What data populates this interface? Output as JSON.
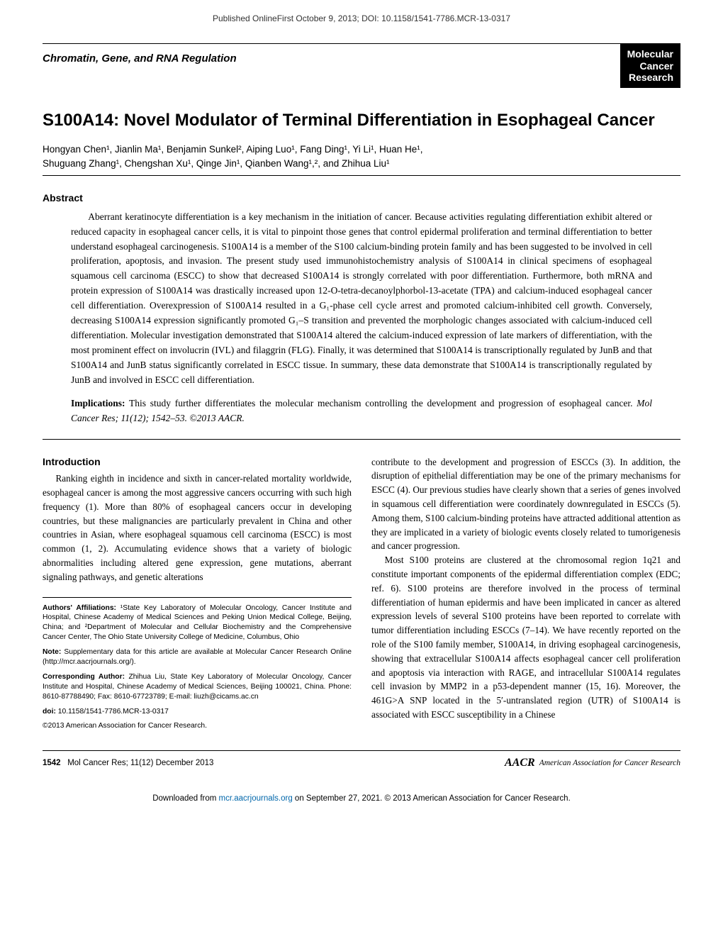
{
  "top_header": "Published OnlineFirst October 9, 2013; DOI: 10.1158/1541-7786.MCR-13-0317",
  "section_label": "Chromatin, Gene, and RNA Regulation",
  "journal_box": {
    "line1": "Molecular",
    "line2": "Cancer",
    "line3": "Research"
  },
  "title": "S100A14: Novel Modulator of Terminal Differentiation in Esophageal Cancer",
  "authors_line1": "Hongyan Chen¹, Jianlin Ma¹, Benjamin Sunkel², Aiping Luo¹, Fang Ding¹, Yi Li¹, Huan He¹,",
  "authors_line2": "Shuguang Zhang¹, Chengshan Xu¹, Qinge Jin¹, Qianben Wang¹,², and Zhihua Liu¹",
  "abstract_heading": "Abstract",
  "abstract_body": "Aberrant keratinocyte differentiation is a key mechanism in the initiation of cancer. Because activities regulating differentiation exhibit altered or reduced capacity in esophageal cancer cells, it is vital to pinpoint those genes that control epidermal proliferation and terminal differentiation to better understand esophageal carcinogenesis. S100A14 is a member of the S100 calcium-binding protein family and has been suggested to be involved in cell proliferation, apoptosis, and invasion. The present study used immunohistochemistry analysis of S100A14 in clinical specimens of esophageal squamous cell carcinoma (ESCC) to show that decreased S100A14 is strongly correlated with poor differentiation. Furthermore, both mRNA and protein expression of S100A14 was drastically increased upon 12-O-tetra-decanoylphorbol-13-acetate (TPA) and calcium-induced esophageal cancer cell differentiation. Overexpression of S100A14 resulted in a G₁-phase cell cycle arrest and promoted calcium-inhibited cell growth. Conversely, decreasing S100A14 expression significantly promoted G₁–S transition and prevented the morphologic changes associated with calcium-induced cell differentiation. Molecular investigation demonstrated that S100A14 altered the calcium-induced expression of late markers of differentiation, with the most prominent effect on involucrin (IVL) and filaggrin (FLG). Finally, it was determined that S100A14 is transcriptionally regulated by JunB and that S100A14 and JunB status significantly correlated in ESCC tissue. In summary, these data demonstrate that S100A14 is transcriptionally regulated by JunB and involved in ESCC cell differentiation.",
  "implications_lead": "Implications:",
  "implications_text": " This study further differentiates the molecular mechanism controlling the development and progression of esophageal cancer. ",
  "implications_cite": "Mol Cancer Res; 11(12); 1542–53. ©2013 AACR.",
  "intro_heading": "Introduction",
  "intro_para1": "Ranking eighth in incidence and sixth in cancer-related mortality worldwide, esophageal cancer is among the most aggressive cancers occurring with such high frequency (1). More than 80% of esophageal cancers occur in developing countries, but these malignancies are particularly prevalent in China and other countries in Asian, where esophageal squamous cell carcinoma (ESCC) is most common (1, 2). Accumulating evidence shows that a variety of biologic abnormalities including altered gene expression, gene mutations, aberrant signaling pathways, and genetic alterations",
  "col2_para1": "contribute to the development and progression of ESCCs (3). In addition, the disruption of epithelial differentiation may be one of the primary mechanisms for ESCC (4). Our previous studies have clearly shown that a series of genes involved in squamous cell differentiation were coordinately downregulated in ESCCs (5). Among them, S100 calcium-binding proteins have attracted additional attention as they are implicated in a variety of biologic events closely related to tumorigenesis and cancer progression.",
  "col2_para2": "Most S100 proteins are clustered at the chromosomal region 1q21 and constitute important components of the epidermal differentiation complex (EDC; ref. 6). S100 proteins are therefore involved in the process of terminal differentiation of human epidermis and have been implicated in cancer as altered expression levels of several S100 proteins have been reported to correlate with tumor differentiation including ESCCs (7–14). We have recently reported on the role of the S100 family member, S100A14, in driving esophageal carcinogenesis, showing that extracellular S100A14 affects esophageal cancer cell proliferation and apoptosis via interaction with RAGE, and intracellular S100A14 regulates cell invasion by MMP2 in a p53-dependent manner (15, 16). Moreover, the 461G>A SNP located in the 5′-untranslated region (UTR) of S100A14 is associated with ESCC susceptibility in a Chinese",
  "meta": {
    "affil_lead": "Authors' Affiliations:",
    "affil_text": " ¹State Key Laboratory of Molecular Oncology, Cancer Institute and Hospital, Chinese Academy of Medical Sciences and Peking Union Medical College, Beijing, China; and ²Department of Molecular and Cellular Biochemistry and the Comprehensive Cancer Center, The Ohio State University College of Medicine, Columbus, Ohio",
    "note_lead": "Note:",
    "note_text": " Supplementary data for this article are available at Molecular Cancer Research Online (http://mcr.aacrjournals.org/).",
    "corr_lead": "Corresponding Author:",
    "corr_text": " Zhihua Liu, State Key Laboratory of Molecular Oncology, Cancer Institute and Hospital, Chinese Academy of Medical Sciences, Beijing 100021, China. Phone: 8610-87788490; Fax: 8610-67723789; E-mail: liuzh@cicams.ac.cn",
    "doi_lead": "doi:",
    "doi_text": " 10.1158/1541-7786.MCR-13-0317",
    "copyright": "©2013 American Association for Cancer Research."
  },
  "footer": {
    "page_num": "1542",
    "issue": "Mol Cancer Res; 11(12) December 2013",
    "aacr_logo": "AACR",
    "aacr_text": "American Association for Cancer Research"
  },
  "download": {
    "pre": "Downloaded from ",
    "link": "mcr.aacrjournals.org",
    "post": " on September 27, 2021. © 2013 American Association for Cancer Research."
  },
  "colors": {
    "text": "#000000",
    "background": "#ffffff",
    "link": "#0066aa",
    "box_bg": "#000000",
    "box_fg": "#ffffff"
  }
}
